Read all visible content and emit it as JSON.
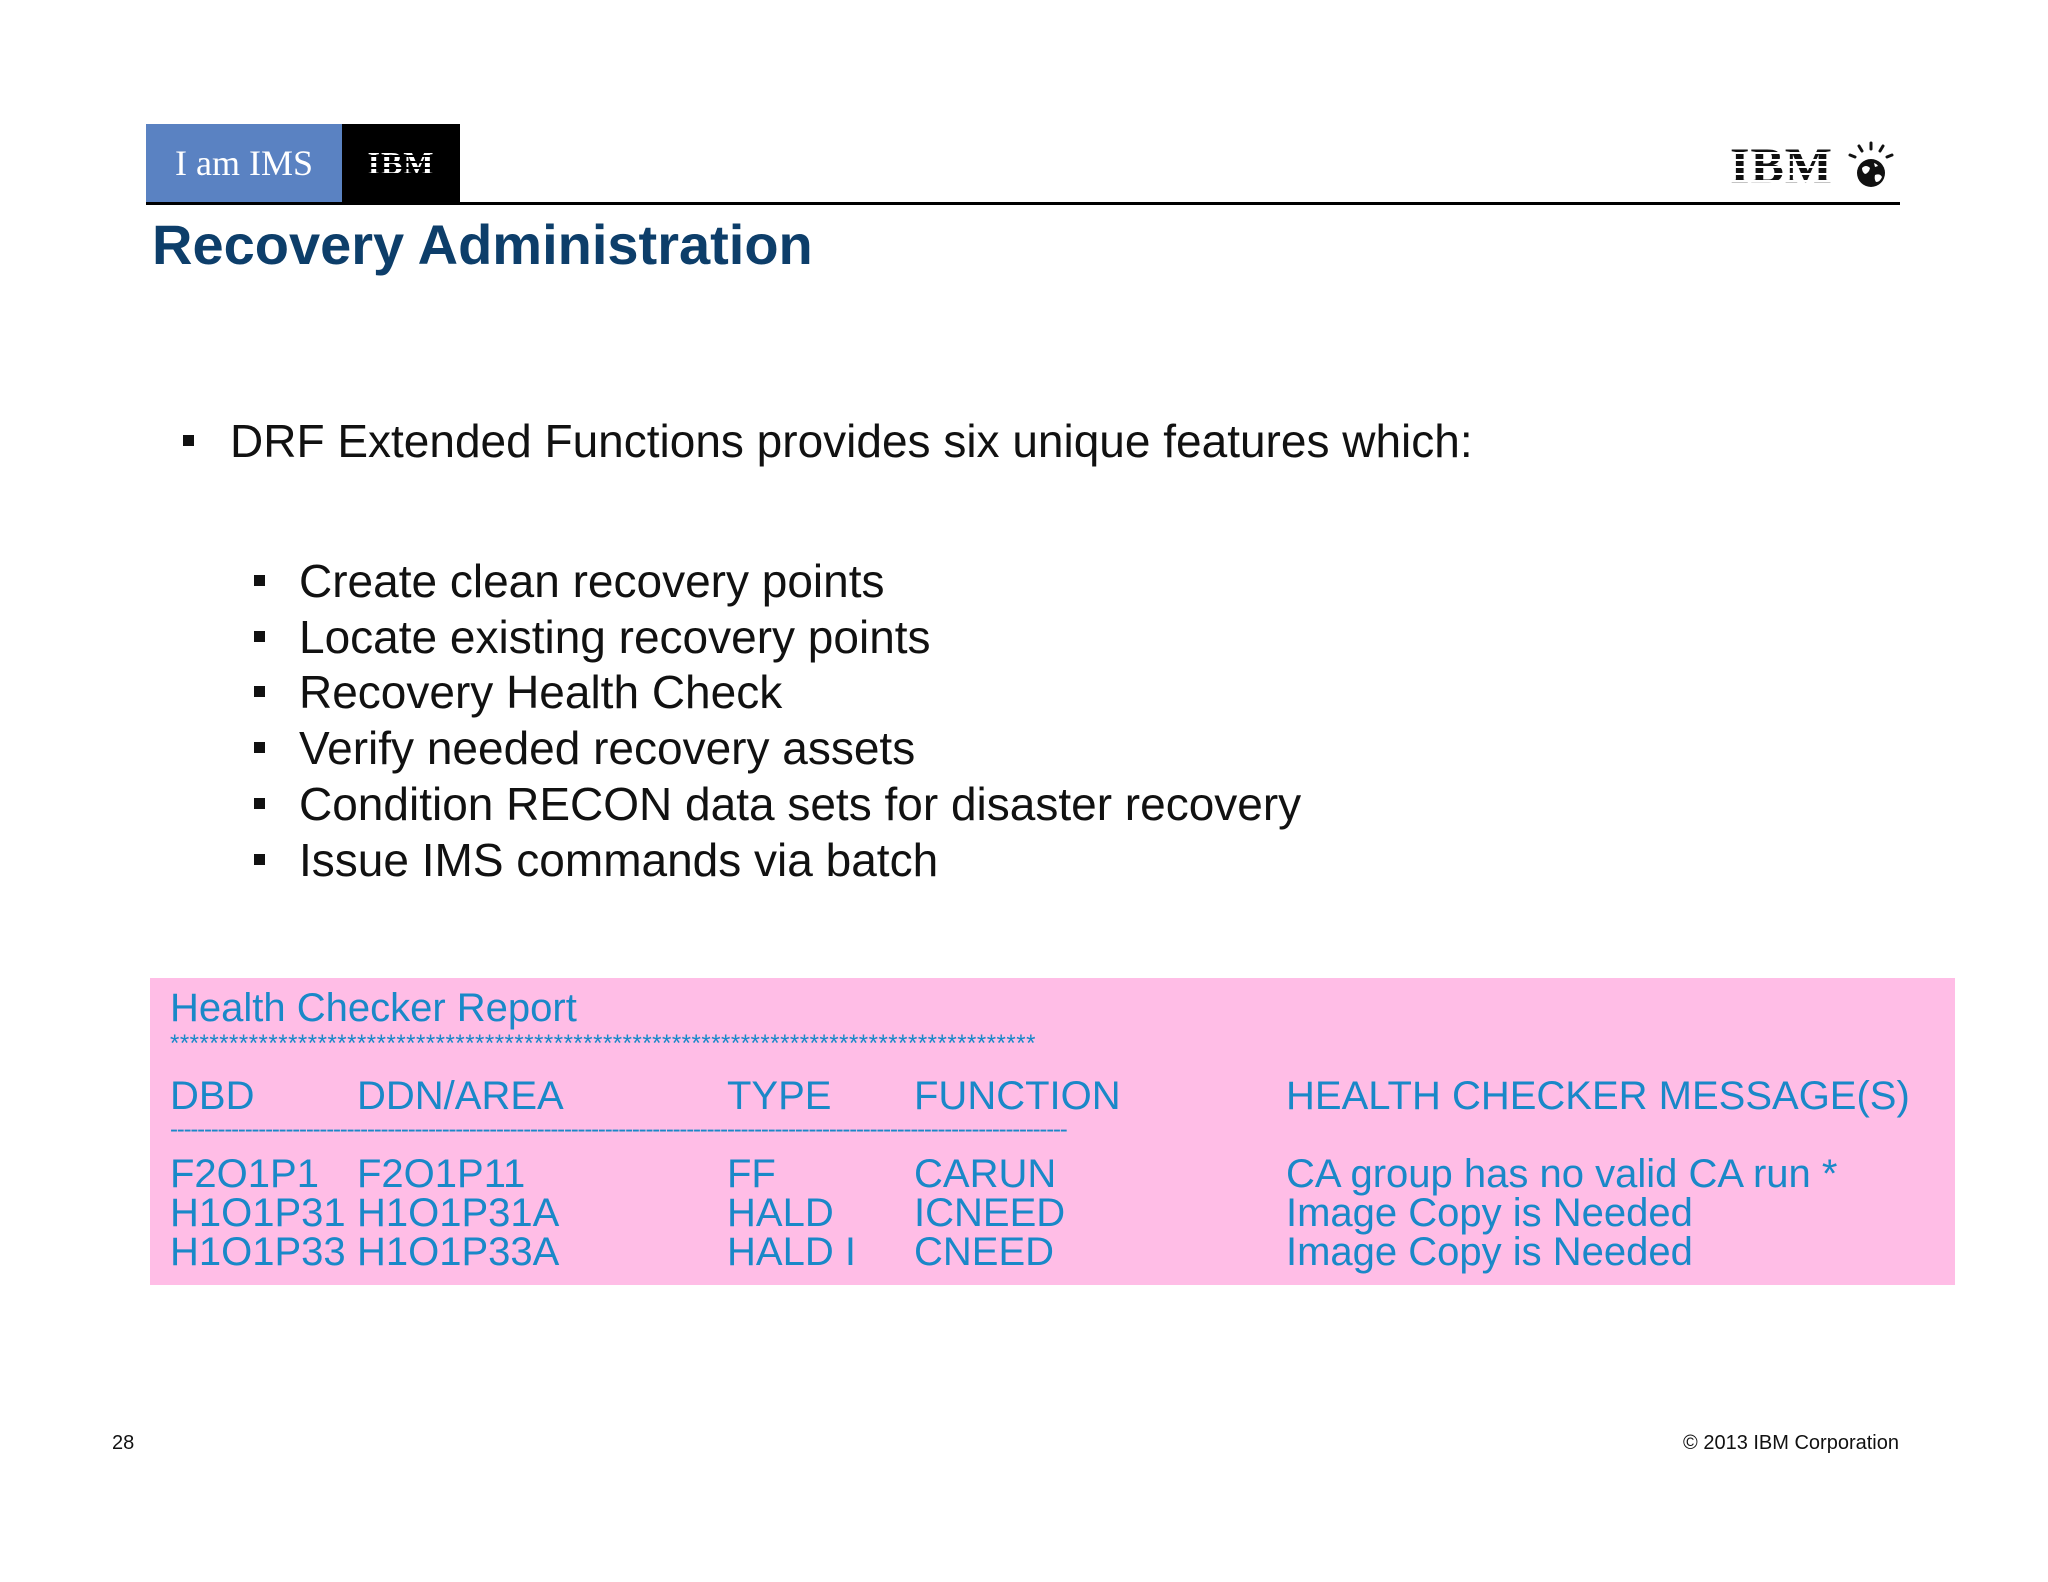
{
  "header": {
    "badge_text": "I am IMS",
    "badge_logo": "IBM",
    "corner_logo": "IBM",
    "title": "Recovery Administration"
  },
  "content": {
    "main_bullet": "DRF Extended Functions provides six unique features which:",
    "sub_bullets": [
      "Create clean recovery points",
      "Locate existing recovery points",
      "Recovery Health Check",
      "Verify needed recovery assets",
      "Condition RECON data sets for disaster recovery",
      "Issue IMS commands via batch"
    ]
  },
  "report": {
    "title": "Health Checker Report",
    "stars": "****************************************************************************************",
    "dashes": "------------------------------------------------------------------------------------------------------------------------------------",
    "columns": [
      "DBD",
      "DDN/AREA",
      "TYPE",
      "FUNCTION",
      "HEALTH CHECKER MESSAGE(S)"
    ],
    "rows": [
      [
        "F2O1P1",
        "F2O1P11",
        "FF",
        "CARUN",
        "CA group has no valid CA run *"
      ],
      [
        "H1O1P31",
        "H1O1P31A",
        "HALD",
        "ICNEED",
        "Image Copy is Needed"
      ],
      [
        "H1O1P33",
        "H1O1P33A",
        "HALD I",
        "CNEED",
        "Image Copy is Needed"
      ]
    ],
    "background": "#ffbde6",
    "text_color": "#1a88c8"
  },
  "footer": {
    "page_number": "28",
    "copyright": "© 2013 IBM Corporation"
  }
}
